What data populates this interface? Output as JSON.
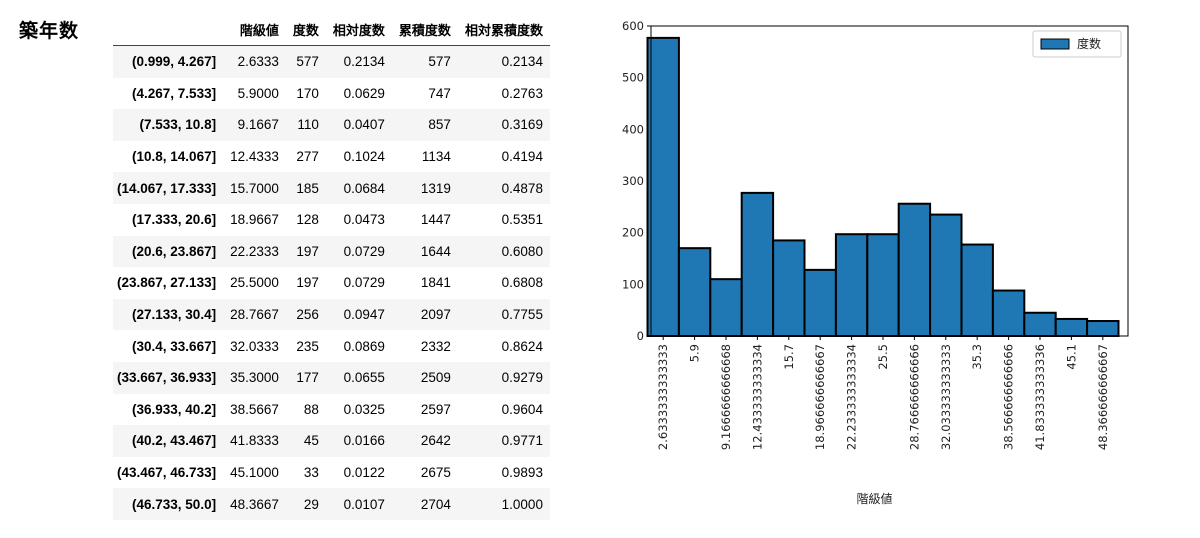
{
  "page_title": "築年数",
  "table": {
    "columns": [
      "階級値",
      "度数",
      "相対度数",
      "累積度数",
      "相対累積度数"
    ],
    "rows": [
      {
        "index": "(0.999, 4.267]",
        "cells": [
          "2.6333",
          "577",
          "0.2134",
          "577",
          "0.2134"
        ]
      },
      {
        "index": "(4.267, 7.533]",
        "cells": [
          "5.9000",
          "170",
          "0.0629",
          "747",
          "0.2763"
        ]
      },
      {
        "index": "(7.533, 10.8]",
        "cells": [
          "9.1667",
          "110",
          "0.0407",
          "857",
          "0.3169"
        ]
      },
      {
        "index": "(10.8, 14.067]",
        "cells": [
          "12.4333",
          "277",
          "0.1024",
          "1134",
          "0.4194"
        ]
      },
      {
        "index": "(14.067, 17.333]",
        "cells": [
          "15.7000",
          "185",
          "0.0684",
          "1319",
          "0.4878"
        ]
      },
      {
        "index": "(17.333, 20.6]",
        "cells": [
          "18.9667",
          "128",
          "0.0473",
          "1447",
          "0.5351"
        ]
      },
      {
        "index": "(20.6, 23.867]",
        "cells": [
          "22.2333",
          "197",
          "0.0729",
          "1644",
          "0.6080"
        ]
      },
      {
        "index": "(23.867, 27.133]",
        "cells": [
          "25.5000",
          "197",
          "0.0729",
          "1841",
          "0.6808"
        ]
      },
      {
        "index": "(27.133, 30.4]",
        "cells": [
          "28.7667",
          "256",
          "0.0947",
          "2097",
          "0.7755"
        ]
      },
      {
        "index": "(30.4, 33.667]",
        "cells": [
          "32.0333",
          "235",
          "0.0869",
          "2332",
          "0.8624"
        ]
      },
      {
        "index": "(33.667, 36.933]",
        "cells": [
          "35.3000",
          "177",
          "0.0655",
          "2509",
          "0.9279"
        ]
      },
      {
        "index": "(36.933, 40.2]",
        "cells": [
          "38.5667",
          "88",
          "0.0325",
          "2597",
          "0.9604"
        ]
      },
      {
        "index": "(40.2, 43.467]",
        "cells": [
          "41.8333",
          "45",
          "0.0166",
          "2642",
          "0.9771"
        ]
      },
      {
        "index": "(43.467, 46.733]",
        "cells": [
          "45.1000",
          "33",
          "0.0122",
          "2675",
          "0.9893"
        ]
      },
      {
        "index": "(46.733, 50.0]",
        "cells": [
          "48.3667",
          "29",
          "0.0107",
          "2704",
          "1.0000"
        ]
      }
    ]
  },
  "chart_data": {
    "type": "bar",
    "xlabel": "階級値",
    "ylabel": "",
    "ylim": [
      0,
      600
    ],
    "yticks": [
      0,
      100,
      200,
      300,
      400,
      500,
      600
    ],
    "grid": false,
    "legend": {
      "position": "top-right"
    },
    "bar_color": "#1f77b4",
    "edge_color": "#000000",
    "categories": [
      "2.6333333333333",
      "5.9",
      "9.1666666666668",
      "12.433333333334",
      "15.7",
      "18.966666666667",
      "22.233333333334",
      "25.5",
      "28.766666666666",
      "32.033333333333",
      "35.3",
      "38.566666666666",
      "41.833333333336",
      "45.1",
      "48.366666666667"
    ],
    "series": [
      {
        "name": "度数",
        "values": [
          577,
          170,
          110,
          277,
          185,
          128,
          197,
          197,
          256,
          235,
          177,
          88,
          45,
          33,
          29
        ]
      }
    ]
  }
}
